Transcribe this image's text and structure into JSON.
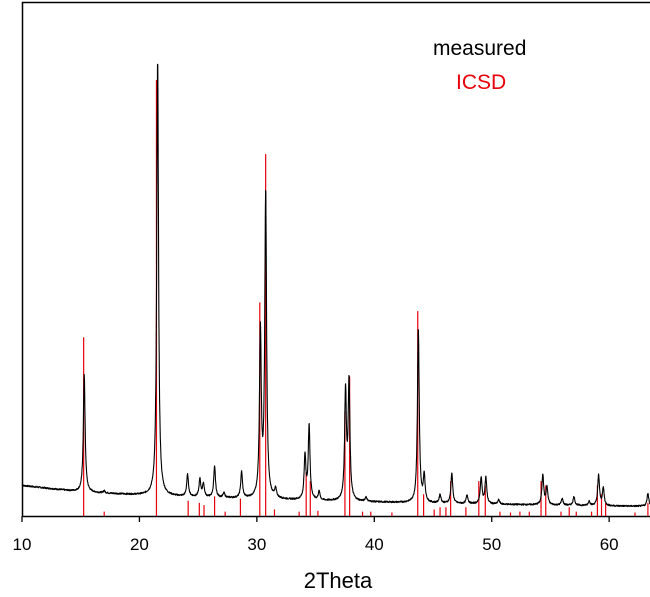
{
  "chart_data": {
    "type": "line",
    "title": "",
    "xlabel": "2Theta",
    "ylabel": "",
    "xlim": [
      10,
      64.5
    ],
    "ylim": [
      0,
      100
    ],
    "xticks": [
      10,
      20,
      30,
      40,
      50,
      60
    ],
    "grid": false,
    "legend_position": "top-right",
    "series": [
      {
        "name": "measured",
        "color": "#000000",
        "baseline": [
          [
            10.0,
            7.0
          ],
          [
            15.0,
            5.5
          ],
          [
            20.0,
            4.8
          ],
          [
            25.0,
            4.3
          ],
          [
            30.0,
            3.9
          ],
          [
            35.0,
            3.5
          ],
          [
            40.0,
            3.2
          ],
          [
            45.0,
            2.9
          ],
          [
            50.0,
            2.7
          ],
          [
            55.0,
            2.5
          ],
          [
            60.0,
            2.3
          ],
          [
            64.5,
            2.2
          ]
        ],
        "peaks": [
          {
            "x": 15.3,
            "y": 27
          },
          {
            "x": 17.0,
            "y": 0.5
          },
          {
            "x": 21.55,
            "y": 100
          },
          {
            "x": 24.1,
            "y": 5
          },
          {
            "x": 25.15,
            "y": 4
          },
          {
            "x": 25.45,
            "y": 3
          },
          {
            "x": 26.4,
            "y": 7
          },
          {
            "x": 27.2,
            "y": 1
          },
          {
            "x": 28.7,
            "y": 6
          },
          {
            "x": 30.3,
            "y": 38
          },
          {
            "x": 30.75,
            "y": 70
          },
          {
            "x": 31.6,
            "y": 2
          },
          {
            "x": 34.1,
            "y": 10
          },
          {
            "x": 34.45,
            "y": 17
          },
          {
            "x": 35.3,
            "y": 2
          },
          {
            "x": 37.55,
            "y": 25
          },
          {
            "x": 37.85,
            "y": 27
          },
          {
            "x": 39.3,
            "y": 1
          },
          {
            "x": 43.75,
            "y": 40
          },
          {
            "x": 44.25,
            "y": 6
          },
          {
            "x": 45.6,
            "y": 2
          },
          {
            "x": 46.6,
            "y": 7
          },
          {
            "x": 47.9,
            "y": 2
          },
          {
            "x": 49.1,
            "y": 6
          },
          {
            "x": 49.5,
            "y": 6
          },
          {
            "x": 50.6,
            "y": 1
          },
          {
            "x": 54.35,
            "y": 7
          },
          {
            "x": 54.7,
            "y": 4
          },
          {
            "x": 56.0,
            "y": 1.5
          },
          {
            "x": 57.0,
            "y": 2
          },
          {
            "x": 58.3,
            "y": 1
          },
          {
            "x": 59.1,
            "y": 7
          },
          {
            "x": 59.5,
            "y": 4
          },
          {
            "x": 63.3,
            "y": 3
          },
          {
            "x": 64.1,
            "y": 2
          }
        ]
      },
      {
        "name": "ICSD",
        "color": "#e8000b",
        "sticks": [
          {
            "x": 15.25,
            "y": 41
          },
          {
            "x": 17.0,
            "y": 1
          },
          {
            "x": 21.45,
            "y": 100
          },
          {
            "x": 24.15,
            "y": 3.5
          },
          {
            "x": 25.1,
            "y": 3
          },
          {
            "x": 25.5,
            "y": 2.5
          },
          {
            "x": 26.4,
            "y": 4.5
          },
          {
            "x": 27.3,
            "y": 1
          },
          {
            "x": 28.6,
            "y": 4
          },
          {
            "x": 30.25,
            "y": 49
          },
          {
            "x": 30.75,
            "y": 83
          },
          {
            "x": 31.5,
            "y": 1.5
          },
          {
            "x": 33.6,
            "y": 1
          },
          {
            "x": 34.2,
            "y": 10
          },
          {
            "x": 34.55,
            "y": 8
          },
          {
            "x": 35.2,
            "y": 1.2
          },
          {
            "x": 37.5,
            "y": 24
          },
          {
            "x": 37.9,
            "y": 32
          },
          {
            "x": 39.0,
            "y": 1
          },
          {
            "x": 39.7,
            "y": 1
          },
          {
            "x": 41.5,
            "y": 0.8
          },
          {
            "x": 43.7,
            "y": 47
          },
          {
            "x": 44.2,
            "y": 5
          },
          {
            "x": 45.1,
            "y": 1.5
          },
          {
            "x": 45.6,
            "y": 2
          },
          {
            "x": 46.1,
            "y": 2
          },
          {
            "x": 46.5,
            "y": 8
          },
          {
            "x": 47.8,
            "y": 2
          },
          {
            "x": 48.9,
            "y": 8
          },
          {
            "x": 49.45,
            "y": 7
          },
          {
            "x": 50.7,
            "y": 1
          },
          {
            "x": 51.6,
            "y": 0.8
          },
          {
            "x": 52.4,
            "y": 1
          },
          {
            "x": 53.2,
            "y": 1
          },
          {
            "x": 54.2,
            "y": 8
          },
          {
            "x": 54.6,
            "y": 7
          },
          {
            "x": 55.9,
            "y": 1
          },
          {
            "x": 56.6,
            "y": 2
          },
          {
            "x": 57.2,
            "y": 1
          },
          {
            "x": 58.5,
            "y": 1
          },
          {
            "x": 59.0,
            "y": 7
          },
          {
            "x": 59.35,
            "y": 5
          },
          {
            "x": 59.7,
            "y": 3
          },
          {
            "x": 62.2,
            "y": 0.8
          },
          {
            "x": 63.3,
            "y": 3
          },
          {
            "x": 64.0,
            "y": 4
          }
        ]
      }
    ]
  }
}
